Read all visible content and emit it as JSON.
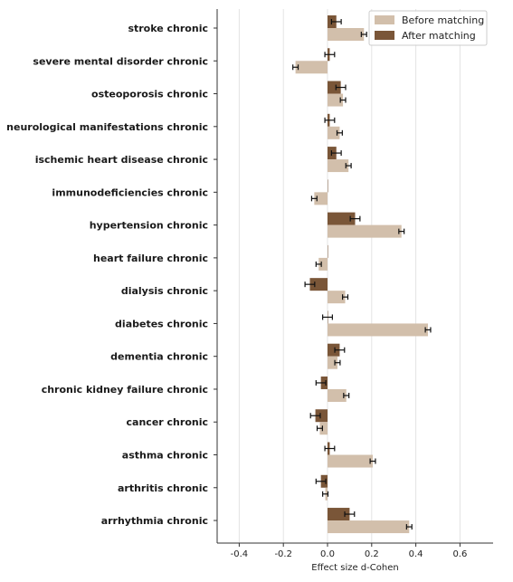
{
  "chart_data": {
    "type": "bar",
    "orientation": "horizontal",
    "xlabel": "Effect size d-Cohen",
    "xlim": [
      -0.5,
      0.75
    ],
    "xticks": [
      "-0.4",
      "-0.2",
      "0.0",
      "0.2",
      "0.4",
      "0.6"
    ],
    "xtick_values": [
      -0.4,
      -0.2,
      0.0,
      0.2,
      0.4,
      0.6
    ],
    "grid": "vertical",
    "legend_position": "top-right",
    "categories": [
      "stroke chronic",
      "severe mental disorder chronic",
      "osteoporosis chronic",
      "neurological manifestations chronic",
      "ischemic heart disease chronic",
      "immunodeficiencies chronic",
      "hypertension chronic",
      "heart failure chronic",
      "dialysis chronic",
      "diabetes chronic",
      "dementia chronic",
      "chronic kidney failure chronic",
      "cancer chronic",
      "asthma chronic",
      "arthritis chronic",
      "arrhythmia chronic"
    ],
    "series": [
      {
        "name": "Before matching",
        "color": "#d2bfab",
        "values": [
          0.165,
          -0.145,
          0.07,
          0.055,
          0.095,
          -0.06,
          0.335,
          -0.04,
          0.08,
          0.455,
          0.045,
          0.085,
          -0.035,
          0.205,
          -0.01,
          0.37
        ],
        "errors": [
          0.012,
          0.012,
          0.012,
          0.012,
          0.012,
          0.012,
          0.012,
          0.012,
          0.012,
          0.012,
          0.012,
          0.012,
          0.012,
          0.012,
          0.012,
          0.012
        ]
      },
      {
        "name": "After matching",
        "color": "#7a5638",
        "values": [
          0.04,
          0.01,
          0.06,
          0.01,
          0.04,
          0.0,
          0.125,
          0.0,
          -0.08,
          0.0,
          0.055,
          -0.03,
          -0.055,
          0.01,
          -0.03,
          0.1
        ],
        "errors": [
          0.022,
          0.022,
          0.022,
          0.022,
          0.022,
          0.0,
          0.022,
          0.0,
          0.022,
          0.022,
          0.022,
          0.022,
          0.022,
          0.022,
          0.022,
          0.022
        ]
      }
    ],
    "colors": {
      "before": "#d2bfab",
      "after": "#7a5638",
      "errorbar": "#111111",
      "grid": "#e4e4e4"
    }
  }
}
